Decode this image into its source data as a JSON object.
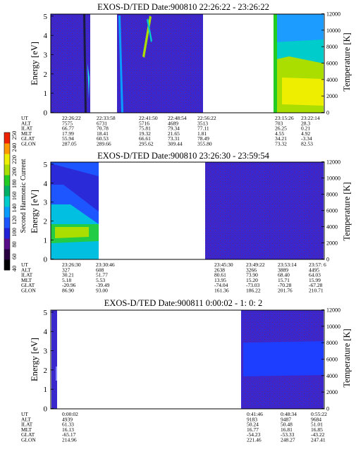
{
  "colorbar": {
    "label": "Second Harmonic Current",
    "ticks": [
      "40",
      "60",
      "80",
      "100",
      "120",
      "140",
      "160",
      "180",
      "200",
      "220",
      "240",
      "250"
    ],
    "colors": [
      "#000000",
      "#2a0040",
      "#5a0d88",
      "#2222d8",
      "#1d55ff",
      "#0a9cff",
      "#00cccc",
      "#00b066",
      "#22cc22",
      "#aadd00",
      "#eeee00",
      "#ff9900",
      "#ee2200"
    ]
  },
  "labels": {
    "energy": "Energy [eV]",
    "temperature": "Temperature [K]",
    "row_labels": [
      "UT",
      "ALT",
      "ILAT",
      "MLT",
      "GLAT",
      "GLON"
    ]
  },
  "panels": [
    {
      "title": "EXOS-D/TED   Date:900810  22:26:22 - 23:26:22",
      "e_ticks": [
        "0",
        "1",
        "2",
        "3",
        "4",
        "5"
      ],
      "t_ticks": [
        "0",
        "2000",
        "4000",
        "6000",
        "8000",
        "10000",
        "12000"
      ],
      "orbit_rows": [
        [
          "22:26:22",
          "7575",
          "66.77",
          "17.99",
          "55.94",
          "287.05"
        ],
        [
          "22:33:58",
          "6731",
          "70.78",
          "18.41",
          "60.53",
          "289.66"
        ],
        [
          "22:41:50",
          "5716",
          "75.81",
          "19.32",
          "66.61",
          "295.62"
        ],
        [
          "22:48:54",
          "4689",
          "79.34",
          "21.65",
          "73.31",
          "309.44"
        ],
        [
          "22:56:22",
          "3513",
          "77.11",
          "1.81",
          "78.49",
          "355.80"
        ],
        [
          "23:15:26",
          "703",
          "26.25",
          "4.55",
          "34.21",
          "73.32"
        ],
        [
          "23:22:14",
          "28.3",
          "0.21",
          "4.92",
          "-3.34",
          "82.53"
        ]
      ]
    },
    {
      "title": "EXOS-D/TED   Date:900810  23:26:30 - 23:59:54",
      "e_ticks": [
        "0",
        "1",
        "2",
        "3",
        "4",
        "5"
      ],
      "t_ticks": [
        "0",
        "2000",
        "4000",
        "6000",
        "8000",
        "10000",
        "12000"
      ],
      "orbit_rows": [
        [
          "23:26:30",
          "327",
          "30.21",
          "5.18",
          "-20.96",
          "86.90"
        ],
        [
          "23:30:46",
          "608",
          "51.77",
          "5.53",
          "-39.49",
          "93.00"
        ],
        [
          "23:45:30",
          "2638",
          "80.61",
          "13.95",
          "-74.04",
          "161.36"
        ],
        [
          "23:49:22",
          "3266",
          "73.90",
          "15.20",
          "-73.03",
          "186.22"
        ],
        [
          "23:53:14",
          "3889",
          "68.40",
          "15.71",
          "-70.28",
          "201.76"
        ],
        [
          "23:57: 6",
          "4495",
          "64.03",
          "15.99",
          "-67.28",
          "210.71"
        ]
      ]
    },
    {
      "title": "EXOS-D/TED   Date:900811  0:00:02 - 1: 0: 2",
      "e_ticks": [
        "0",
        "1",
        "2",
        "3",
        "4",
        "5"
      ],
      "t_ticks": [
        "0",
        "2000",
        "4000",
        "6000",
        "8000",
        "10000",
        "12000"
      ],
      "orbit_rows": [
        [
          "0:00:02",
          "4939",
          "61.33",
          "16.13",
          "-65.17",
          "214.96"
        ],
        [
          "0:41:46",
          "9183",
          "50.24",
          "16.77",
          "-54.23",
          "221.46"
        ],
        [
          "0:48:34",
          "9487",
          "50.48",
          "16.81",
          "-53.33",
          "248.27"
        ],
        [
          "0:55:22",
          "9684",
          "51.01",
          "16.85",
          "-43.22",
          "247.41"
        ]
      ]
    }
  ],
  "chart_data": [
    {
      "type": "heatmap",
      "title": "EXOS-D/TED   Date:900810  22:26:22 - 23:26:22",
      "ylabel": "Energy [eV]",
      "y2label": "Temperature [K]",
      "ylim": [
        0,
        5
      ],
      "y2lim": [
        0,
        12000
      ],
      "xlim": [
        "22:26:22",
        "23:26:22"
      ],
      "xticks": [
        "22:26:22",
        "22:33:58",
        "22:41:50",
        "22:48:54",
        "22:56:22",
        "23:15:26",
        "23:22:14"
      ],
      "blocks": [
        {
          "from": "22:26:22",
          "to": "22:33:58",
          "dominant": "low (dark blue)",
          "features": "spiky bright streaks near 22:33"
        },
        {
          "from": "22:41:50",
          "to": "22:58:00",
          "dominant": "low (dark blue)",
          "features": "cyan/yellow diagonal streaks near 22:42 and 22:46"
        },
        {
          "from": "23:15:26",
          "to": "23:26:22",
          "dominant": "high",
          "features": "green-yellow band 0-2.5 eV, cyan above"
        }
      ],
      "no_data": [
        [
          "22:33:58",
          "22:41:50"
        ],
        [
          "22:58:00",
          "23:15:26"
        ]
      ]
    },
    {
      "type": "heatmap",
      "title": "EXOS-D/TED   Date:900810  23:26:30 - 23:59:54",
      "ylabel": "Energy [eV]",
      "y2label": "Temperature [K]",
      "ylim": [
        0,
        5
      ],
      "y2lim": [
        0,
        12000
      ],
      "xlim": [
        "23:26:30",
        "23:59:54"
      ],
      "xticks": [
        "23:26:30",
        "23:30:46",
        "23:45:30",
        "23:49:22",
        "23:53:14",
        "23:57: 6"
      ],
      "blocks": [
        {
          "from": "23:26:30",
          "to": "23:31:20",
          "dominant": "mid (blue)",
          "features": "green band 0.7-1.6 eV, cyan below 2.6 eV"
        },
        {
          "from": "23:45:00",
          "to": "23:59:54",
          "dominant": "low (dark blue)",
          "features": "speckled noise"
        }
      ],
      "no_data": [
        [
          "23:31:20",
          "23:45:00"
        ]
      ]
    },
    {
      "type": "heatmap",
      "title": "EXOS-D/TED   Date:900811  0:00:02 - 1: 0: 2",
      "ylabel": "Energy [eV]",
      "y2label": "Temperature [K]",
      "ylim": [
        0,
        5
      ],
      "y2lim": [
        0,
        12000
      ],
      "xlim": [
        "0:00:02",
        "1: 0: 2"
      ],
      "xticks": [
        "0:00:02",
        "0:41:46",
        "0:48:34",
        "0:55:22"
      ],
      "blocks": [
        {
          "from": "0:00:02",
          "to": "0:01:30",
          "dominant": "low (dark blue)",
          "features": "narrow strip"
        },
        {
          "from": "0:41:00",
          "to": "1: 0: 2",
          "dominant": "low (dark blue)",
          "features": "brighter blue band 1.6-3.3 eV"
        }
      ],
      "no_data": [
        [
          "0:01:30",
          "0:41:00"
        ]
      ]
    }
  ]
}
